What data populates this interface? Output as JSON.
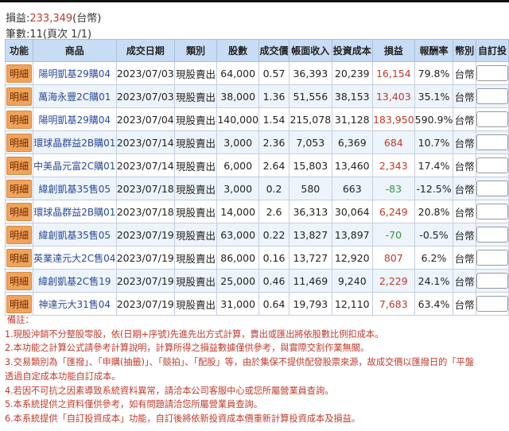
{
  "summary": {
    "pnl_label": "損益:",
    "pnl_value": "233,349",
    "pnl_unit": "(台幣)",
    "count_text": "筆數:11(頁次 1/1)"
  },
  "table": {
    "headers": [
      "功能",
      "商品",
      "成交日期",
      "類別",
      "股數",
      "成交價",
      "帳面收入",
      "投資成本",
      "損益",
      "報酬率",
      "幣別",
      "自訂投"
    ],
    "rows": [
      [
        "明細",
        "陽明凱基29購04",
        "2023/07/03",
        "現股賣出",
        "64,000",
        "0.57",
        "36,393",
        "20,239",
        "16,154",
        "79.8%",
        "台幣"
      ],
      [
        "明細",
        "萬海永豐2C購01",
        "2023/07/03",
        "現股賣出",
        "38,000",
        "1.36",
        "51,556",
        "38,153",
        "13,403",
        "35.1%",
        "台幣"
      ],
      [
        "明細",
        "陽明凱基29購04",
        "2023/07/04",
        "現股賣出",
        "140,000",
        "1.54",
        "215,078",
        "31,128",
        "183,950",
        "590.9%",
        "台幣"
      ],
      [
        "明細",
        "環球晶群益2B購01",
        "2023/07/14",
        "現股賣出",
        "3,000",
        "2.36",
        "7,053",
        "6,369",
        "684",
        "10.7%",
        "台幣"
      ],
      [
        "明細",
        "中美晶元富2C購01",
        "2023/07/14",
        "現股賣出",
        "6,000",
        "2.64",
        "15,803",
        "13,460",
        "2,343",
        "17.4%",
        "台幣"
      ],
      [
        "明細",
        "緯創凱基35售05",
        "2023/07/18",
        "現股賣出",
        "3,000",
        "0.2",
        "580",
        "663",
        "-83",
        "-12.5%",
        "台幣"
      ],
      [
        "明細",
        "環球晶群益2B購01",
        "2023/07/18",
        "現股賣出",
        "14,000",
        "2.6",
        "36,313",
        "30,064",
        "6,249",
        "20.8%",
        "台幣"
      ],
      [
        "明細",
        "緯創凱基35售05",
        "2023/07/19",
        "現股賣出",
        "63,000",
        "0.22",
        "13,827",
        "13,897",
        "-70",
        "-0.5%",
        "台幣"
      ],
      [
        "明細",
        "英業達元大2C售04",
        "2023/07/19",
        "現股賣出",
        "86,000",
        "0.16",
        "13,727",
        "12,920",
        "807",
        "6.2%",
        "台幣"
      ],
      [
        "明細",
        "緯創凱基2C售19",
        "2023/07/19",
        "現股賣出",
        "25,000",
        "0.46",
        "11,469",
        "9,240",
        "2,229",
        "24.1%",
        "台幣"
      ],
      [
        "明細",
        "神達元大31售04",
        "2023/07/19",
        "現股賣出",
        "31,000",
        "0.64",
        "19,793",
        "12,110",
        "7,683",
        "63.4%",
        "台幣"
      ]
    ]
  },
  "notes": {
    "title": "備註：",
    "items": [
      "1.現股沖銷不分整股零股，依(日期+序號)先進先出方式計算，賣出或匯出將依股數比例扣成本。",
      "2.本功能之計算公式請參考計算說明，計算所得之損益數據僅供參考，與實際交割作業無關。",
      "3.交易類別為「匯撥」、「申購(抽籤)」、「競拍」、「配股」等，由於集保不提供配發股票來源，故成交價以匯撥日的「平盤",
      "透過自定成本功能自訂成本。",
      "4.若因不可抗之因素導致系統資料異常，請洽本公司客服中心或您所屬營業員查詢。",
      "5.本系統提供之資料僅供參考，如有問題請洽您所屬營業員查詢。",
      "6.本系統提供「自訂投資成本」功能，自訂後將依新投資成本價重新計算投資成本及損益。"
    ]
  },
  "colors": {
    "profit": "#c0392b",
    "loss": "#2e9a3c",
    "header_bg": "#c9dcf5",
    "detail_button": "#f0a35a"
  }
}
